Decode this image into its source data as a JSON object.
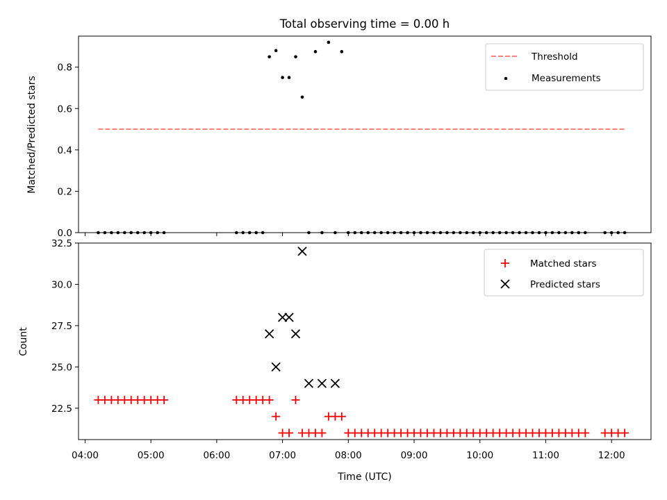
{
  "chart_data": [
    {
      "type": "scatter",
      "title": "Total observing time = 0.00 h",
      "xlabel": "",
      "ylabel": "Matched/Predicted stars",
      "ylim": [
        0,
        0.95
      ],
      "yticks": [
        "0.0",
        "0.2",
        "0.4",
        "0.6",
        "0.8"
      ],
      "ytick_values": [
        0.0,
        0.2,
        0.4,
        0.6,
        0.8
      ],
      "grid": false,
      "legend_position": "top-right",
      "series": [
        {
          "name": "Threshold",
          "style": "dashed-line",
          "color": "#ff7f7f",
          "x": [
            "04:12",
            "12:12"
          ],
          "y": [
            0.5,
            0.5
          ]
        },
        {
          "name": "Measurements",
          "style": "dot",
          "color": "#000000",
          "x": [
            "04:12",
            "04:18",
            "04:24",
            "04:30",
            "04:36",
            "04:42",
            "04:48",
            "04:54",
            "05:00",
            "05:06",
            "05:12",
            "06:18",
            "06:24",
            "06:30",
            "06:36",
            "06:42",
            "06:48",
            "06:54",
            "07:00",
            "07:06",
            "07:12",
            "07:18",
            "07:24",
            "07:30",
            "07:36",
            "07:42",
            "07:48",
            "07:54",
            "08:00",
            "08:06",
            "08:12",
            "08:18",
            "08:24",
            "08:30",
            "08:36",
            "08:42",
            "08:48",
            "08:54",
            "09:00",
            "09:06",
            "09:12",
            "09:18",
            "09:24",
            "09:30",
            "09:36",
            "09:42",
            "09:48",
            "09:54",
            "10:00",
            "10:06",
            "10:12",
            "10:18",
            "10:24",
            "10:30",
            "10:36",
            "10:42",
            "10:48",
            "10:54",
            "11:00",
            "11:06",
            "11:12",
            "11:18",
            "11:24",
            "11:30",
            "11:36",
            "11:54",
            "12:00",
            "12:06",
            "12:12"
          ],
          "y": [
            0,
            0,
            0,
            0,
            0,
            0,
            0,
            0,
            0,
            0,
            0,
            0,
            0,
            0,
            0,
            0,
            0.85,
            0.88,
            0.75,
            0.75,
            0.85,
            0.655,
            0,
            0.875,
            0,
            0.92,
            0,
            0.875,
            0,
            0,
            0,
            0,
            0,
            0,
            0,
            0,
            0,
            0,
            0,
            0,
            0,
            0,
            0,
            0,
            0,
            0,
            0,
            0,
            0,
            0,
            0,
            0,
            0,
            0,
            0,
            0,
            0,
            0,
            0,
            0,
            0,
            0,
            0,
            0,
            0,
            0,
            0,
            0,
            0
          ]
        }
      ]
    },
    {
      "type": "scatter",
      "title": "",
      "xlabel": "Time (UTC)",
      "ylabel": "Count",
      "ylim": [
        20.6,
        32.5
      ],
      "yticks": [
        "22.5",
        "25.0",
        "27.5",
        "30.0",
        "32.5"
      ],
      "ytick_values": [
        22.5,
        25.0,
        27.5,
        30.0,
        32.5
      ],
      "xticks": [
        "04:00",
        "05:00",
        "06:00",
        "07:00",
        "08:00",
        "09:00",
        "10:00",
        "11:00",
        "12:00"
      ],
      "grid": false,
      "legend_position": "top-right",
      "series": [
        {
          "name": "Matched stars",
          "style": "plus",
          "color": "#ff0000",
          "x": [
            "04:12",
            "04:18",
            "04:24",
            "04:30",
            "04:36",
            "04:42",
            "04:48",
            "04:54",
            "05:00",
            "05:06",
            "05:12",
            "06:18",
            "06:24",
            "06:30",
            "06:36",
            "06:42",
            "06:48",
            "06:54",
            "07:00",
            "07:06",
            "07:12",
            "07:18",
            "07:24",
            "07:30",
            "07:36",
            "07:42",
            "07:48",
            "07:54",
            "08:00",
            "08:06",
            "08:12",
            "08:18",
            "08:24",
            "08:30",
            "08:36",
            "08:42",
            "08:48",
            "08:54",
            "09:00",
            "09:06",
            "09:12",
            "09:18",
            "09:24",
            "09:30",
            "09:36",
            "09:42",
            "09:48",
            "09:54",
            "10:00",
            "10:06",
            "10:12",
            "10:18",
            "10:24",
            "10:30",
            "10:36",
            "10:42",
            "10:48",
            "10:54",
            "11:00",
            "11:06",
            "11:12",
            "11:18",
            "11:24",
            "11:30",
            "11:36",
            "11:54",
            "12:00",
            "12:06",
            "12:12"
          ],
          "y": [
            23,
            23,
            23,
            23,
            23,
            23,
            23,
            23,
            23,
            23,
            23,
            23,
            23,
            23,
            23,
            23,
            23,
            22,
            21,
            21,
            23,
            21,
            21,
            21,
            21,
            22,
            22,
            22,
            21,
            21,
            21,
            21,
            21,
            21,
            21,
            21,
            21,
            21,
            21,
            21,
            21,
            21,
            21,
            21,
            21,
            21,
            21,
            21,
            21,
            21,
            21,
            21,
            21,
            21,
            21,
            21,
            21,
            21,
            21,
            21,
            21,
            21,
            21,
            21,
            21,
            21,
            21,
            21,
            21
          ]
        },
        {
          "name": "Predicted stars",
          "style": "x",
          "color": "#000000",
          "x": [
            "06:48",
            "06:54",
            "07:00",
            "07:06",
            "07:12",
            "07:18",
            "07:24",
            "07:36",
            "07:48"
          ],
          "y": [
            27,
            25,
            28,
            28,
            27,
            32,
            24,
            24,
            24
          ]
        }
      ]
    }
  ],
  "time_range": [
    "03:54",
    "12:36"
  ]
}
